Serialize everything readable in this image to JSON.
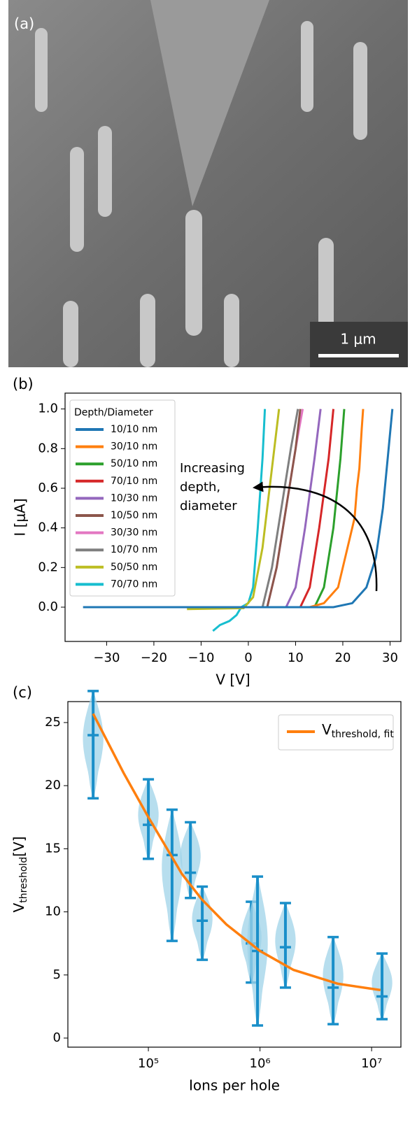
{
  "image_panel": {
    "panel_label": "(a)",
    "scale_bar": "1 μm"
  },
  "chart_data": [
    {
      "type": "line",
      "panel_label": "(b)",
      "xlabel": "V [V]",
      "ylabel": "I [μA]",
      "xlim": [
        -38.8,
        32.3
      ],
      "ylim": [
        -0.173,
        1.08
      ],
      "xticks": [
        {
          "value": -30,
          "label": "−30"
        },
        {
          "value": -20,
          "label": "−20"
        },
        {
          "value": -10,
          "label": "−10"
        },
        0,
        10,
        20,
        30
      ],
      "yticks": [
        {
          "value": 0,
          "label": "0.0"
        },
        {
          "value": 0.2,
          "label": "0.2"
        },
        {
          "value": 0.4,
          "label": "0.4"
        },
        {
          "value": 0.6,
          "label": "0.6"
        },
        {
          "value": 0.8,
          "label": "0.8"
        },
        {
          "value": 1,
          "label": "1.0"
        }
      ],
      "legend_title": "Depth/Diameter",
      "legend": "upper left",
      "annotation": [
        "Increasing",
        "depth,",
        "diameter"
      ],
      "series": [
        {
          "name": "10/10 nm",
          "color": "#1f77b4",
          "x": [
            -35,
            18,
            22,
            25,
            27,
            28.5,
            29.5,
            30.5
          ],
          "values": [
            0,
            0,
            0.02,
            0.1,
            0.25,
            0.5,
            0.75,
            1.0
          ]
        },
        {
          "name": "30/10 nm",
          "color": "#ff7f0e",
          "x": [
            -30,
            13,
            16,
            19,
            21,
            22.5,
            23,
            23.5,
            24,
            24.3
          ],
          "values": [
            0,
            0,
            0.02,
            0.1,
            0.3,
            0.45,
            0.6,
            0.7,
            0.9,
            1.0
          ]
        },
        {
          "name": "50/10 nm",
          "color": "#2ca02c",
          "x": [
            -26,
            14,
            16,
            18,
            19.5,
            20.3
          ],
          "values": [
            0,
            0,
            0.1,
            0.4,
            0.75,
            1.0
          ]
        },
        {
          "name": "70/10 nm",
          "color": "#d62728",
          "x": [
            -20,
            11,
            13,
            15,
            17,
            18
          ],
          "values": [
            0,
            0,
            0.1,
            0.4,
            0.75,
            1.0
          ]
        },
        {
          "name": "10/30 nm",
          "color": "#9467bd",
          "x": [
            -21,
            8,
            10,
            12,
            14,
            15.3
          ],
          "values": [
            0,
            0,
            0.1,
            0.4,
            0.75,
            1.0
          ]
        },
        {
          "name": "10/50 nm",
          "color": "#8c564b",
          "x": [
            -15,
            4,
            6,
            8,
            10,
            11
          ],
          "values": [
            0,
            0,
            0.2,
            0.5,
            0.8,
            1.0
          ]
        },
        {
          "name": "30/30 nm",
          "color": "#e377c2",
          "x": [
            -15,
            4,
            6,
            8,
            10,
            11.5
          ],
          "values": [
            0,
            0,
            0.2,
            0.5,
            0.8,
            1.0
          ]
        },
        {
          "name": "10/70 nm",
          "color": "#7f7f7f",
          "x": [
            -12,
            3,
            5,
            7,
            9,
            10.5
          ],
          "values": [
            0,
            0,
            0.2,
            0.5,
            0.8,
            1.0
          ]
        },
        {
          "name": "50/50 nm",
          "color": "#bcbd22",
          "x": [
            -13,
            -1,
            1,
            3,
            4.5,
            6.5
          ],
          "values": [
            -0.01,
            -0.005,
            0.05,
            0.3,
            0.6,
            1.0
          ]
        },
        {
          "name": "70/70 nm",
          "color": "#17becf",
          "x": [
            -7.5,
            -6,
            -4,
            -2.5,
            -1.5,
            0,
            1,
            2,
            3,
            3.5
          ],
          "values": [
            -0.12,
            -0.09,
            -0.07,
            -0.04,
            0,
            0.02,
            0.1,
            0.4,
            0.75,
            1.0
          ]
        }
      ]
    },
    {
      "type": "violin",
      "panel_label": "(c)",
      "xlabel": "Ions per hole",
      "ylabel": "V",
      "ylabel_subscript": "threshold",
      "ylabel_unit": "[V]",
      "log_x": true,
      "xlim": [
        19000,
        18300000
      ],
      "ylim": [
        -0.72,
        26.66
      ],
      "xticks": [
        {
          "value": 100000,
          "label": "10⁵"
        },
        {
          "value": 1000000,
          "label": "10⁶"
        },
        {
          "value": 10000000,
          "label": "10⁷"
        }
      ],
      "yticks": [
        0,
        5,
        10,
        15,
        20,
        25
      ],
      "violin_color": "#9fd3e8",
      "bar_color": "#1a8fc9",
      "x": [
        32000,
        100000,
        163000,
        238000,
        304000,
        836000,
        950000,
        1690000,
        4520000,
        12400000
      ],
      "min": [
        19,
        14.2,
        7.7,
        11.1,
        6.2,
        4.4,
        1.0,
        4.0,
        1.1,
        1.5
      ],
      "max": [
        27.5,
        20.5,
        18.1,
        17.1,
        12.0,
        10.8,
        12.8,
        10.7,
        8.0,
        6.7
      ],
      "mean": [
        24,
        16.9,
        14.5,
        13.1,
        9.3,
        7.5,
        6.9,
        7.2,
        4.0,
        3.3
      ],
      "legend": "upper right",
      "fit": {
        "name": "V",
        "name_subscript": "threshold, fit",
        "color": "#ff7f0e",
        "x": [
          32000,
          60000,
          100000,
          200000,
          300000,
          500000,
          1000000,
          2000000,
          5000000,
          12000000
        ],
        "values": [
          25.7,
          21.0,
          17.5,
          13.0,
          11.0,
          9.0,
          6.9,
          5.4,
          4.3,
          3.8
        ]
      }
    }
  ]
}
